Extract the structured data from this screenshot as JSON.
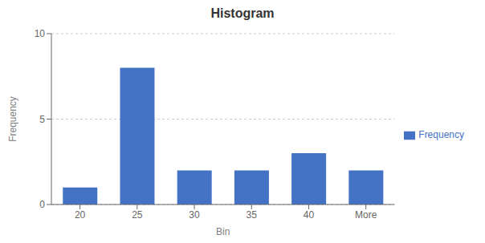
{
  "chart_data": {
    "type": "bar",
    "title": "Histogram",
    "xlabel": "Bin",
    "ylabel": "Frequency",
    "categories": [
      "20",
      "25",
      "30",
      "35",
      "40",
      "More"
    ],
    "series": [
      {
        "name": "Frequency",
        "color": "#4472C4",
        "values": [
          1,
          8,
          2,
          2,
          3,
          2
        ]
      }
    ],
    "ylim": [
      0,
      10
    ],
    "yticks": [
      0,
      5,
      10
    ],
    "grid": true,
    "legend": "right"
  }
}
